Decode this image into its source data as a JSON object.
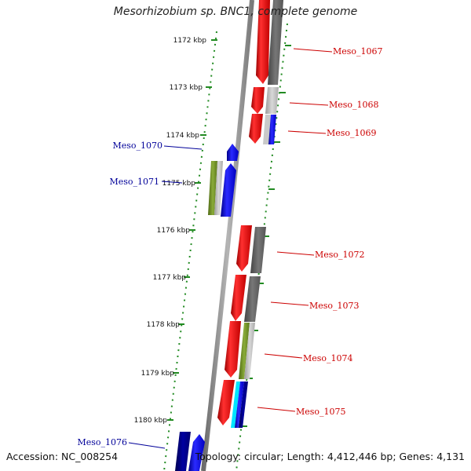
{
  "title": "Mesorhizobium sp. BNC1, complete genome",
  "footer": {
    "accession": "Accession: NC_008254",
    "topology": "Topology: circular; Length: 4,412,446 bp; Genes: 4,131"
  },
  "colors": {
    "forward_cds": "#ff0000",
    "reverse_cds": "#0000ff",
    "backbone": "#8a8a8a",
    "tick": "#228b22",
    "label_forward": "#cc0000",
    "label_reverse": "#000099",
    "cog_dark_gray": "#666666",
    "cog_light_gray": "#bdbdbd",
    "cog_olive": "#6b8e23",
    "cog_cyan": "#00e5ff",
    "cog_navy": "#000080"
  },
  "ticks": [
    "1172 kbp",
    "1173 kbp",
    "1174 kbp",
    "1175 kbp",
    "1176 kbp",
    "1177 kbp",
    "1178 kbp",
    "1179 kbp",
    "1180 kbp"
  ],
  "genes": [
    {
      "label": "Meso_1067",
      "strand": "forward"
    },
    {
      "label": "Meso_1068",
      "strand": "forward"
    },
    {
      "label": "Meso_1069",
      "strand": "forward"
    },
    {
      "label": "Meso_1070",
      "strand": "reverse"
    },
    {
      "label": "Meso_1071",
      "strand": "reverse"
    },
    {
      "label": "Meso_1072",
      "strand": "forward"
    },
    {
      "label": "Meso_1073",
      "strand": "forward"
    },
    {
      "label": "Meso_1074",
      "strand": "forward"
    },
    {
      "label": "Meso_1075",
      "strand": "forward"
    },
    {
      "label": "Meso_1076",
      "strand": "reverse"
    }
  ]
}
